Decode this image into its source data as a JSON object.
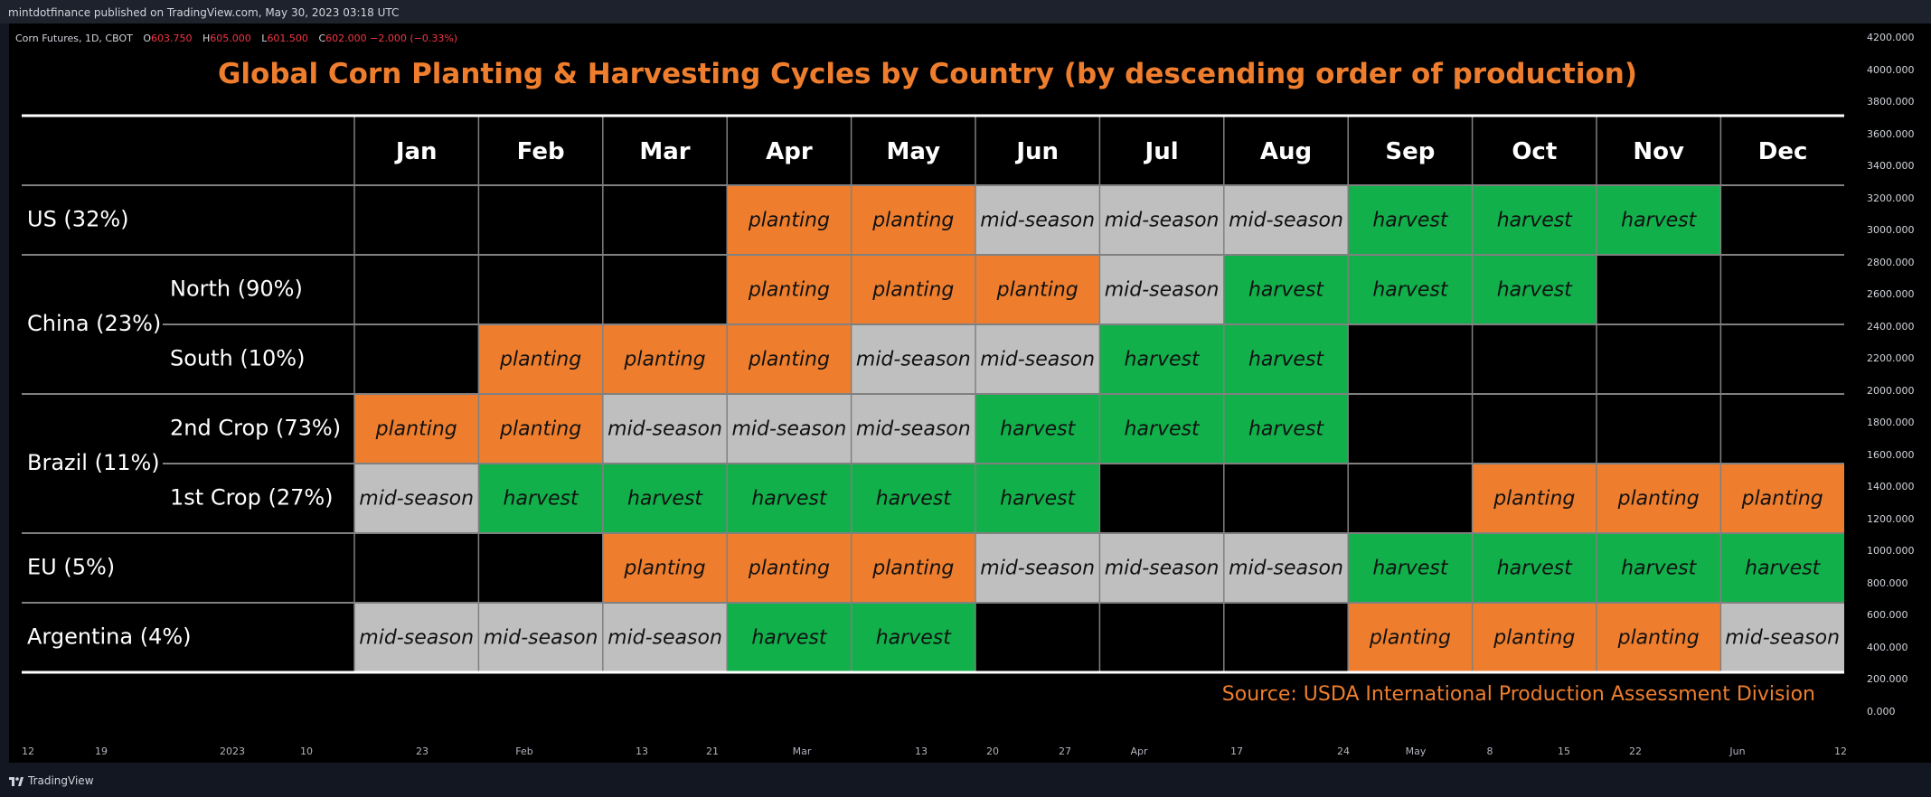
{
  "header": {
    "publisher_line": "mintdotfinance published on TradingView.com, May 30, 2023 03:18 UTC"
  },
  "symbol": {
    "name": "Corn Futures, 1D, CBOT",
    "open_label": "O",
    "open": "603.750",
    "high_label": "H",
    "high": "605.000",
    "low_label": "L",
    "low": "601.500",
    "close_label": "C",
    "close": "602.000",
    "change": "−2.000 (−0.33%)"
  },
  "colors": {
    "planting": "#ee7e2e",
    "mid-season": "#bfbfbf",
    "harvest": "#11b04b",
    "title": "#ee7e2e",
    "grid": "#808080",
    "border": "#ffffff"
  },
  "chart_data": {
    "type": "table",
    "title": "Global Corn Planting & Harvesting Cycles by Country (by descending order of production)",
    "columns": [
      "Jan",
      "Feb",
      "Mar",
      "Apr",
      "May",
      "Jun",
      "Jul",
      "Aug",
      "Sep",
      "Oct",
      "Nov",
      "Dec"
    ],
    "groups": [
      {
        "label": "US (32%)",
        "rows": [
          {
            "label": "",
            "cells": [
              "",
              "",
              "",
              "planting",
              "planting",
              "mid-season",
              "mid-season",
              "mid-season",
              "harvest",
              "harvest",
              "harvest",
              ""
            ]
          }
        ]
      },
      {
        "label": "China (23%)",
        "rows": [
          {
            "label": "North (90%)",
            "cells": [
              "",
              "",
              "",
              "planting",
              "planting",
              "planting",
              "mid-season",
              "harvest",
              "harvest",
              "harvest",
              "",
              ""
            ]
          },
          {
            "label": "South (10%)",
            "cells": [
              "",
              "planting",
              "planting",
              "planting",
              "mid-season",
              "mid-season",
              "harvest",
              "harvest",
              "",
              "",
              "",
              ""
            ]
          }
        ]
      },
      {
        "label": "Brazil (11%)",
        "rows": [
          {
            "label": "2nd Crop (73%)",
            "cells": [
              "planting",
              "planting",
              "mid-season",
              "mid-season",
              "mid-season",
              "harvest",
              "harvest",
              "harvest",
              "",
              "",
              "",
              ""
            ]
          },
          {
            "label": "1st Crop (27%)",
            "cells": [
              "mid-season",
              "harvest",
              "harvest",
              "harvest",
              "harvest",
              "harvest",
              "",
              "",
              "",
              "planting",
              "planting",
              "planting"
            ]
          }
        ]
      },
      {
        "label": "EU (5%)",
        "rows": [
          {
            "label": "",
            "cells": [
              "",
              "",
              "planting",
              "planting",
              "planting",
              "mid-season",
              "mid-season",
              "mid-season",
              "harvest",
              "harvest",
              "harvest",
              "harvest"
            ]
          }
        ]
      },
      {
        "label": "Argentina (4%)",
        "rows": [
          {
            "label": "",
            "cells": [
              "mid-season",
              "mid-season",
              "mid-season",
              "harvest",
              "harvest",
              "",
              "",
              "",
              "planting",
              "planting",
              "planting",
              "mid-season"
            ]
          }
        ]
      }
    ],
    "source": "Source: USDA International Production Assessment Division"
  },
  "price_axis": [
    "4200.000",
    "4000.000",
    "3800.000",
    "3600.000",
    "3400.000",
    "3200.000",
    "3000.000",
    "2800.000",
    "2600.000",
    "2400.000",
    "2200.000",
    "2000.000",
    "1800.000",
    "1600.000",
    "1400.000",
    "1200.000",
    "1000.000",
    "800.000",
    "600.000",
    "400.000",
    "200.000",
    "0.000"
  ],
  "time_axis": [
    "12",
    "19",
    "2023",
    "10",
    "23",
    "Feb",
    "13",
    "21",
    "Mar",
    "13",
    "20",
    "27",
    "Apr",
    "17",
    "24",
    "May",
    "8",
    "15",
    "22",
    "Jun",
    "12"
  ],
  "footer": {
    "brand": "TradingView"
  }
}
